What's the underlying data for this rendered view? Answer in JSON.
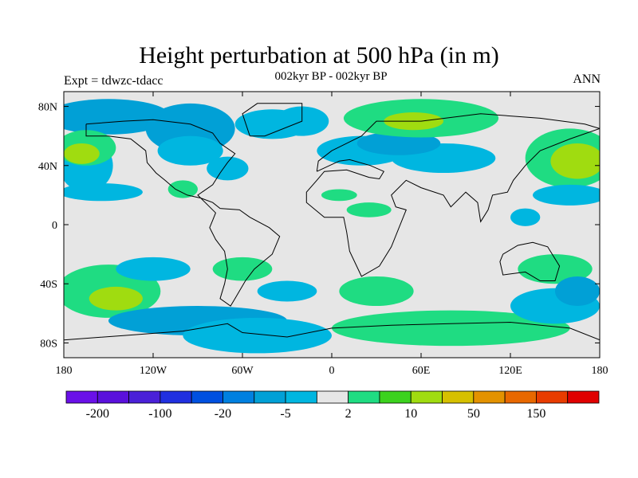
{
  "header": {
    "title": "Height perturbation at 500 hPa (in m)",
    "subtitle": "002kyr BP - 002kyr BP",
    "left_label": "Expt = tdwzc-tdacc",
    "right_label": "ANN"
  },
  "map": {
    "projection": "cylindrical equidistant",
    "lon_range": [
      -180,
      180
    ],
    "lat_range": [
      -90,
      90
    ],
    "background_color": "#e6e6e6",
    "x_ticks": [
      {
        "lon": -180,
        "label": "180"
      },
      {
        "lon": -120,
        "label": "120W"
      },
      {
        "lon": -60,
        "label": "60W"
      },
      {
        "lon": 0,
        "label": "0"
      },
      {
        "lon": 60,
        "label": "60E"
      },
      {
        "lon": 120,
        "label": "120E"
      },
      {
        "lon": 180,
        "label": "180"
      }
    ],
    "y_ticks": [
      {
        "lat": 80,
        "label": "80N"
      },
      {
        "lat": 40,
        "label": "40N"
      },
      {
        "lat": 0,
        "label": "0"
      },
      {
        "lat": -40,
        "label": "40S"
      },
      {
        "lat": -80,
        "label": "80S"
      }
    ],
    "fields": [
      {
        "level": "#01a0d6",
        "lon": -150,
        "lat": 73,
        "rx": 42,
        "ry": 12
      },
      {
        "level": "#01a0d6",
        "lon": -95,
        "lat": 65,
        "rx": 30,
        "ry": 17
      },
      {
        "level": "#00b6e0",
        "lon": -40,
        "lat": 68,
        "rx": 25,
        "ry": 10
      },
      {
        "level": "#00b6e0",
        "lon": -165,
        "lat": 40,
        "rx": 18,
        "ry": 18
      },
      {
        "level": "#00b6e0",
        "lon": -155,
        "lat": 22,
        "rx": 28,
        "ry": 6
      },
      {
        "level": "#1fdc82",
        "lon": -165,
        "lat": 52,
        "rx": 20,
        "ry": 12
      },
      {
        "level": "#a0dc10",
        "lon": -168,
        "lat": 48,
        "rx": 12,
        "ry": 7
      },
      {
        "level": "#00b6e0",
        "lon": -95,
        "lat": 50,
        "rx": 22,
        "ry": 10
      },
      {
        "level": "#00b6e0",
        "lon": -70,
        "lat": 38,
        "rx": 14,
        "ry": 8
      },
      {
        "level": "#1fdc82",
        "lon": -100,
        "lat": 24,
        "rx": 10,
        "ry": 6
      },
      {
        "level": "#00b6e0",
        "lon": 20,
        "lat": 50,
        "rx": 30,
        "ry": 10
      },
      {
        "level": "#00b6e0",
        "lon": 75,
        "lat": 45,
        "rx": 35,
        "ry": 10
      },
      {
        "level": "#01a0d6",
        "lon": 45,
        "lat": 55,
        "rx": 28,
        "ry": 8
      },
      {
        "level": "#1fdc82",
        "lon": 60,
        "lat": 72,
        "rx": 52,
        "ry": 13
      },
      {
        "level": "#a0dc10",
        "lon": 55,
        "lat": 70,
        "rx": 20,
        "ry": 6
      },
      {
        "level": "#00b6e0",
        "lon": -20,
        "lat": 70,
        "rx": 18,
        "ry": 10
      },
      {
        "level": "#1fdc82",
        "lon": 5,
        "lat": 20,
        "rx": 12,
        "ry": 4
      },
      {
        "level": "#1fdc82",
        "lon": 25,
        "lat": 10,
        "rx": 15,
        "ry": 5
      },
      {
        "level": "#1fdc82",
        "lon": 160,
        "lat": 45,
        "rx": 30,
        "ry": 20
      },
      {
        "level": "#a0dc10",
        "lon": 165,
        "lat": 43,
        "rx": 18,
        "ry": 12
      },
      {
        "level": "#00b6e0",
        "lon": 160,
        "lat": 20,
        "rx": 25,
        "ry": 7
      },
      {
        "level": "#00b6e0",
        "lon": 130,
        "lat": 5,
        "rx": 10,
        "ry": 6
      },
      {
        "level": "#1fdc82",
        "lon": -150,
        "lat": -45,
        "rx": 35,
        "ry": 18
      },
      {
        "level": "#a0dc10",
        "lon": -145,
        "lat": -50,
        "rx": 18,
        "ry": 8
      },
      {
        "level": "#00b6e0",
        "lon": -120,
        "lat": -30,
        "rx": 25,
        "ry": 8
      },
      {
        "level": "#01a0d6",
        "lon": -90,
        "lat": -65,
        "rx": 60,
        "ry": 10
      },
      {
        "level": "#00b6e0",
        "lon": -50,
        "lat": -75,
        "rx": 50,
        "ry": 12
      },
      {
        "level": "#1fdc82",
        "lon": -60,
        "lat": -30,
        "rx": 20,
        "ry": 8
      },
      {
        "level": "#00b6e0",
        "lon": -30,
        "lat": -45,
        "rx": 20,
        "ry": 7
      },
      {
        "level": "#1fdc82",
        "lon": 30,
        "lat": -45,
        "rx": 25,
        "ry": 10
      },
      {
        "level": "#1fdc82",
        "lon": 80,
        "lat": -70,
        "rx": 80,
        "ry": 12
      },
      {
        "level": "#1fdc82",
        "lon": 150,
        "lat": -30,
        "rx": 25,
        "ry": 10
      },
      {
        "level": "#00b6e0",
        "lon": 150,
        "lat": -55,
        "rx": 30,
        "ry": 12
      },
      {
        "level": "#01a0d6",
        "lon": 165,
        "lat": -45,
        "rx": 15,
        "ry": 10
      }
    ],
    "coastlines": [
      [
        [
          -165,
          68
        ],
        [
          -140,
          70
        ],
        [
          -120,
          71
        ],
        [
          -95,
          68
        ],
        [
          -80,
          62
        ],
        [
          -75,
          55
        ],
        [
          -65,
          48
        ],
        [
          -70,
          42
        ],
        [
          -75,
          35
        ],
        [
          -80,
          27
        ],
        [
          -90,
          20
        ],
        [
          -85,
          15
        ],
        [
          -78,
          8
        ],
        [
          -80,
          3
        ],
        [
          -82,
          -2
        ],
        [
          -78,
          -10
        ],
        [
          -72,
          -18
        ],
        [
          -70,
          -30
        ],
        [
          -72,
          -40
        ],
        [
          -75,
          -50
        ],
        [
          -68,
          -55
        ],
        [
          -65,
          -50
        ],
        [
          -58,
          -38
        ],
        [
          -52,
          -30
        ],
        [
          -40,
          -20
        ],
        [
          -35,
          -8
        ],
        [
          -42,
          -2
        ],
        [
          -55,
          5
        ],
        [
          -62,
          10
        ],
        [
          -75,
          11
        ],
        [
          -80,
          15
        ],
        [
          -88,
          18
        ],
        [
          -97,
          20
        ],
        [
          -105,
          24
        ],
        [
          -112,
          30
        ],
        [
          -118,
          35
        ],
        [
          -124,
          42
        ],
        [
          -125,
          50
        ],
        [
          -135,
          58
        ],
        [
          -150,
          60
        ],
        [
          -165,
          60
        ],
        [
          -165,
          68
        ]
      ],
      [
        [
          -55,
          60
        ],
        [
          -45,
          60
        ],
        [
          -20,
          70
        ],
        [
          -20,
          82
        ],
        [
          -50,
          82
        ],
        [
          -60,
          75
        ],
        [
          -55,
          60
        ]
      ],
      [
        [
          -10,
          36
        ],
        [
          -9,
          43
        ],
        [
          0,
          50
        ],
        [
          10,
          55
        ],
        [
          20,
          60
        ],
        [
          30,
          70
        ],
        [
          60,
          70
        ],
        [
          100,
          75
        ],
        [
          140,
          72
        ],
        [
          170,
          68
        ],
        [
          180,
          65
        ],
        [
          160,
          58
        ],
        [
          140,
          50
        ],
        [
          130,
          40
        ],
        [
          122,
          30
        ],
        [
          118,
          22
        ],
        [
          108,
          20
        ],
        [
          105,
          10
        ],
        [
          100,
          2
        ],
        [
          98,
          15
        ],
        [
          90,
          22
        ],
        [
          80,
          12
        ],
        [
          75,
          20
        ],
        [
          60,
          25
        ],
        [
          50,
          30
        ],
        [
          40,
          20
        ],
        [
          43,
          12
        ],
        [
          50,
          10
        ],
        [
          40,
          -15
        ],
        [
          32,
          -28
        ],
        [
          20,
          -35
        ],
        [
          12,
          -18
        ],
        [
          10,
          -5
        ],
        [
          8,
          5
        ],
        [
          -5,
          5
        ],
        [
          -17,
          15
        ],
        [
          -17,
          22
        ],
        [
          -10,
          30
        ],
        [
          -5,
          36
        ],
        [
          10,
          37
        ],
        [
          25,
          32
        ],
        [
          32,
          31
        ],
        [
          35,
          36
        ],
        [
          26,
          40
        ],
        [
          12,
          44
        ],
        [
          5,
          43
        ],
        [
          -10,
          36
        ]
      ],
      [
        [
          115,
          -20
        ],
        [
          125,
          -14
        ],
        [
          135,
          -12
        ],
        [
          145,
          -15
        ],
        [
          153,
          -28
        ],
        [
          150,
          -38
        ],
        [
          140,
          -38
        ],
        [
          130,
          -32
        ],
        [
          115,
          -34
        ],
        [
          113,
          -25
        ],
        [
          115,
          -20
        ]
      ],
      [
        [
          -180,
          -78
        ],
        [
          -140,
          -75
        ],
        [
          -100,
          -72
        ],
        [
          -70,
          -67
        ],
        [
          -60,
          -73
        ],
        [
          -30,
          -76
        ],
        [
          0,
          -70
        ],
        [
          40,
          -68
        ],
        [
          80,
          -67
        ],
        [
          120,
          -66
        ],
        [
          160,
          -70
        ],
        [
          180,
          -78
        ]
      ]
    ]
  },
  "colorbar": {
    "colors": [
      "#6a10e8",
      "#5a10dc",
      "#4a20d8",
      "#2030e0",
      "#0050e0",
      "#0080e0",
      "#01a0d6",
      "#00b6e0",
      "#e6e6e6",
      "#1fdc82",
      "#3cd21e",
      "#a0dc10",
      "#d6c000",
      "#e39200",
      "#e86800",
      "#e83c00",
      "#e00000"
    ],
    "labels": [
      {
        "index": 1,
        "text": "-200"
      },
      {
        "index": 3,
        "text": "-100"
      },
      {
        "index": 5,
        "text": "-20"
      },
      {
        "index": 7,
        "text": "-5"
      },
      {
        "index": 9,
        "text": "2"
      },
      {
        "index": 11,
        "text": "10"
      },
      {
        "index": 13,
        "text": "50"
      },
      {
        "index": 15,
        "text": "150"
      }
    ]
  }
}
